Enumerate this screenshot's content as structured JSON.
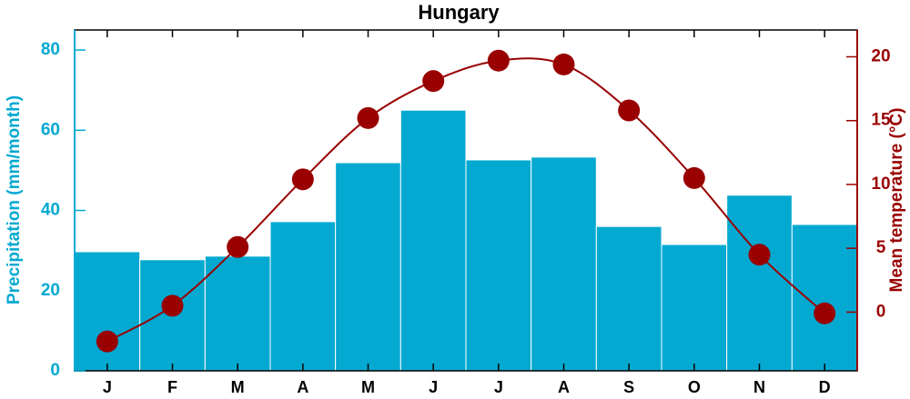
{
  "chart_data": {
    "type": "bar-line",
    "title": "Hungary",
    "categories": [
      "J",
      "F",
      "M",
      "A",
      "M",
      "J",
      "J",
      "A",
      "S",
      "O",
      "N",
      "D"
    ],
    "series": [
      {
        "name": "Precipitation (mm/month)",
        "type": "bar",
        "color": "#03a9d1",
        "values": [
          29.7,
          27.7,
          28.6,
          37.2,
          51.9,
          65,
          52.6,
          53.3,
          36,
          31.5,
          43.8,
          36.5
        ]
      },
      {
        "name": "Mean temperature (°C)",
        "type": "line",
        "axis": "y2",
        "color": "#990000",
        "values": [
          -2.3,
          0.5,
          5.1,
          10.4,
          15.2,
          18.1,
          19.7,
          19.4,
          15.8,
          10.5,
          4.5,
          -0.1
        ]
      }
    ],
    "ylim": [
      0,
      85
    ],
    "yticks": [
      0,
      20,
      40,
      60,
      80
    ],
    "y2lim": [
      -4.6,
      22.1
    ],
    "y2ticks": [
      0,
      5,
      10,
      15,
      20
    ]
  }
}
